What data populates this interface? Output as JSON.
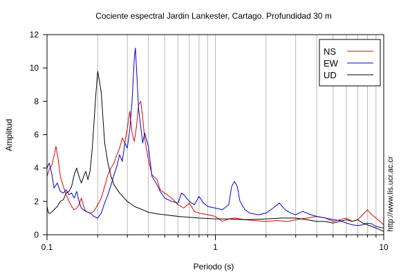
{
  "chart_data": {
    "type": "line",
    "title": "Cociente espectral Jardin Lankester, Cartago. Profundidad 30 m",
    "xlabel": "Periodo (s)",
    "ylabel": "Amplitud",
    "xscale": "log",
    "xlim": [
      0.1,
      10
    ],
    "ylim": [
      0,
      12
    ],
    "x_ticks": [
      0.1,
      1,
      10
    ],
    "x_tick_labels": [
      "0.1",
      "1",
      "10"
    ],
    "y_ticks": [
      0,
      2,
      4,
      6,
      8,
      10,
      12
    ],
    "y_tick_labels": [
      "0",
      "2",
      "4",
      "6",
      "8",
      "10",
      "12"
    ],
    "grid": "vertical log-decade gridlines",
    "legend_position": "top-right",
    "side_label": "http://www.lis.ucr.ac.cr",
    "series": [
      {
        "name": "NS",
        "color": "#e00000",
        "points": [
          [
            0.1,
            3.5
          ],
          [
            0.103,
            3.9
          ],
          [
            0.107,
            4.2
          ],
          [
            0.11,
            4.7
          ],
          [
            0.113,
            5.3
          ],
          [
            0.117,
            4.4
          ],
          [
            0.12,
            3.5
          ],
          [
            0.125,
            2.9
          ],
          [
            0.13,
            2.4
          ],
          [
            0.135,
            2.0
          ],
          [
            0.14,
            1.7
          ],
          [
            0.145,
            1.5
          ],
          [
            0.15,
            1.6
          ],
          [
            0.155,
            1.8
          ],
          [
            0.16,
            2.2
          ],
          [
            0.165,
            1.7
          ],
          [
            0.17,
            1.4
          ],
          [
            0.18,
            1.3
          ],
          [
            0.19,
            1.4
          ],
          [
            0.2,
            1.8
          ],
          [
            0.21,
            2.2
          ],
          [
            0.22,
            2.9
          ],
          [
            0.23,
            3.6
          ],
          [
            0.24,
            4.0
          ],
          [
            0.25,
            4.3
          ],
          [
            0.26,
            4.8
          ],
          [
            0.27,
            5.2
          ],
          [
            0.28,
            5.8
          ],
          [
            0.29,
            5.5
          ],
          [
            0.3,
            6.4
          ],
          [
            0.31,
            7.4
          ],
          [
            0.32,
            6.1
          ],
          [
            0.33,
            5.6
          ],
          [
            0.34,
            6.5
          ],
          [
            0.35,
            7.8
          ],
          [
            0.36,
            8.0
          ],
          [
            0.37,
            7.0
          ],
          [
            0.38,
            5.8
          ],
          [
            0.4,
            4.5
          ],
          [
            0.42,
            3.6
          ],
          [
            0.45,
            3.3
          ],
          [
            0.47,
            2.7
          ],
          [
            0.5,
            2.5
          ],
          [
            0.55,
            2.2
          ],
          [
            0.6,
            1.8
          ],
          [
            0.65,
            1.6
          ],
          [
            0.7,
            1.9
          ],
          [
            0.75,
            1.4
          ],
          [
            0.8,
            1.3
          ],
          [
            0.9,
            1.2
          ],
          [
            1.0,
            1.1
          ],
          [
            1.1,
            0.8
          ],
          [
            1.2,
            0.95
          ],
          [
            1.3,
            1.0
          ],
          [
            1.5,
            0.9
          ],
          [
            1.7,
            0.85
          ],
          [
            2.0,
            0.8
          ],
          [
            2.3,
            0.85
          ],
          [
            2.7,
            0.8
          ],
          [
            3.0,
            0.9
          ],
          [
            3.5,
            1.0
          ],
          [
            4.0,
            1.1
          ],
          [
            4.5,
            1.0
          ],
          [
            5.0,
            0.8
          ],
          [
            5.5,
            0.9
          ],
          [
            6.0,
            1.0
          ],
          [
            6.5,
            0.8
          ],
          [
            7.0,
            0.9
          ],
          [
            7.5,
            1.2
          ],
          [
            8.0,
            1.5
          ],
          [
            8.5,
            1.2
          ],
          [
            9.0,
            1.0
          ],
          [
            9.5,
            0.8
          ],
          [
            10.0,
            0.6
          ]
        ]
      },
      {
        "name": "EW",
        "color": "#0000cc",
        "points": [
          [
            0.1,
            4.0
          ],
          [
            0.103,
            4.3
          ],
          [
            0.107,
            3.6
          ],
          [
            0.11,
            2.8
          ],
          [
            0.115,
            3.1
          ],
          [
            0.12,
            2.6
          ],
          [
            0.125,
            2.5
          ],
          [
            0.13,
            2.7
          ],
          [
            0.135,
            2.4
          ],
          [
            0.14,
            2.5
          ],
          [
            0.145,
            2.2
          ],
          [
            0.15,
            2.6
          ],
          [
            0.155,
            2.0
          ],
          [
            0.16,
            1.6
          ],
          [
            0.17,
            1.4
          ],
          [
            0.18,
            1.3
          ],
          [
            0.19,
            1.1
          ],
          [
            0.2,
            1.0
          ],
          [
            0.21,
            1.3
          ],
          [
            0.22,
            1.9
          ],
          [
            0.23,
            2.4
          ],
          [
            0.24,
            3.0
          ],
          [
            0.25,
            3.6
          ],
          [
            0.26,
            4.1
          ],
          [
            0.27,
            4.8
          ],
          [
            0.28,
            4.4
          ],
          [
            0.29,
            5.5
          ],
          [
            0.3,
            5.2
          ],
          [
            0.31,
            6.3
          ],
          [
            0.32,
            8.0
          ],
          [
            0.33,
            10.6
          ],
          [
            0.335,
            11.2
          ],
          [
            0.34,
            10.0
          ],
          [
            0.35,
            7.5
          ],
          [
            0.36,
            6.5
          ],
          [
            0.37,
            5.5
          ],
          [
            0.38,
            6.1
          ],
          [
            0.4,
            5.3
          ],
          [
            0.42,
            3.5
          ],
          [
            0.45,
            3.0
          ],
          [
            0.47,
            2.6
          ],
          [
            0.5,
            2.2
          ],
          [
            0.55,
            2.0
          ],
          [
            0.6,
            1.9
          ],
          [
            0.63,
            2.5
          ],
          [
            0.65,
            2.4
          ],
          [
            0.7,
            2.0
          ],
          [
            0.75,
            1.8
          ],
          [
            0.8,
            2.3
          ],
          [
            0.85,
            1.9
          ],
          [
            0.9,
            1.7
          ],
          [
            1.0,
            1.6
          ],
          [
            1.1,
            1.5
          ],
          [
            1.2,
            1.8
          ],
          [
            1.25,
            2.9
          ],
          [
            1.3,
            3.2
          ],
          [
            1.35,
            2.9
          ],
          [
            1.4,
            2.0
          ],
          [
            1.5,
            1.5
          ],
          [
            1.6,
            1.3
          ],
          [
            1.8,
            1.2
          ],
          [
            2.0,
            1.3
          ],
          [
            2.2,
            1.6
          ],
          [
            2.4,
            1.9
          ],
          [
            2.6,
            1.5
          ],
          [
            2.8,
            1.3
          ],
          [
            3.0,
            1.2
          ],
          [
            3.3,
            1.4
          ],
          [
            3.7,
            1.2
          ],
          [
            4.0,
            1.1
          ],
          [
            4.5,
            1.0
          ],
          [
            5.0,
            0.9
          ],
          [
            5.5,
            0.85
          ],
          [
            6.0,
            0.7
          ],
          [
            6.5,
            0.6
          ],
          [
            7.0,
            0.55
          ],
          [
            7.5,
            0.6
          ],
          [
            8.0,
            0.7
          ],
          [
            8.5,
            0.65
          ],
          [
            9.0,
            0.5
          ],
          [
            9.5,
            0.45
          ],
          [
            10.0,
            0.4
          ]
        ]
      },
      {
        "name": "UD",
        "color": "#000000",
        "points": [
          [
            0.1,
            1.7
          ],
          [
            0.102,
            1.3
          ],
          [
            0.105,
            1.3
          ],
          [
            0.11,
            1.5
          ],
          [
            0.115,
            1.7
          ],
          [
            0.12,
            2.0
          ],
          [
            0.125,
            2.1
          ],
          [
            0.13,
            2.5
          ],
          [
            0.135,
            2.6
          ],
          [
            0.14,
            2.9
          ],
          [
            0.145,
            3.6
          ],
          [
            0.15,
            4.0
          ],
          [
            0.155,
            3.5
          ],
          [
            0.16,
            3.1
          ],
          [
            0.165,
            3.5
          ],
          [
            0.17,
            3.8
          ],
          [
            0.175,
            3.3
          ],
          [
            0.18,
            3.8
          ],
          [
            0.185,
            5.0
          ],
          [
            0.19,
            6.7
          ],
          [
            0.195,
            8.4
          ],
          [
            0.2,
            9.8
          ],
          [
            0.205,
            9.2
          ],
          [
            0.21,
            8.5
          ],
          [
            0.215,
            7.0
          ],
          [
            0.22,
            5.5
          ],
          [
            0.23,
            4.3
          ],
          [
            0.24,
            3.5
          ],
          [
            0.25,
            3.0
          ],
          [
            0.27,
            2.5
          ],
          [
            0.3,
            2.0
          ],
          [
            0.33,
            1.7
          ],
          [
            0.37,
            1.5
          ],
          [
            0.4,
            1.35
          ],
          [
            0.45,
            1.25
          ],
          [
            0.5,
            1.2
          ],
          [
            0.6,
            1.1
          ],
          [
            0.7,
            1.05
          ],
          [
            0.8,
            1.0
          ],
          [
            1.0,
            0.95
          ],
          [
            1.2,
            0.95
          ],
          [
            1.5,
            0.9
          ],
          [
            2.0,
            0.95
          ],
          [
            2.5,
            1.0
          ],
          [
            3.0,
            1.0
          ],
          [
            3.5,
            0.9
          ],
          [
            4.0,
            0.8
          ],
          [
            4.5,
            0.8
          ],
          [
            5.0,
            0.7
          ],
          [
            5.5,
            0.8
          ],
          [
            6.0,
            0.9
          ],
          [
            6.5,
            0.8
          ],
          [
            7.0,
            0.9
          ],
          [
            7.5,
            0.7
          ],
          [
            8.0,
            0.6
          ],
          [
            8.5,
            0.5
          ],
          [
            9.0,
            0.4
          ],
          [
            9.5,
            0.3
          ],
          [
            10.0,
            0.2
          ]
        ]
      }
    ]
  }
}
